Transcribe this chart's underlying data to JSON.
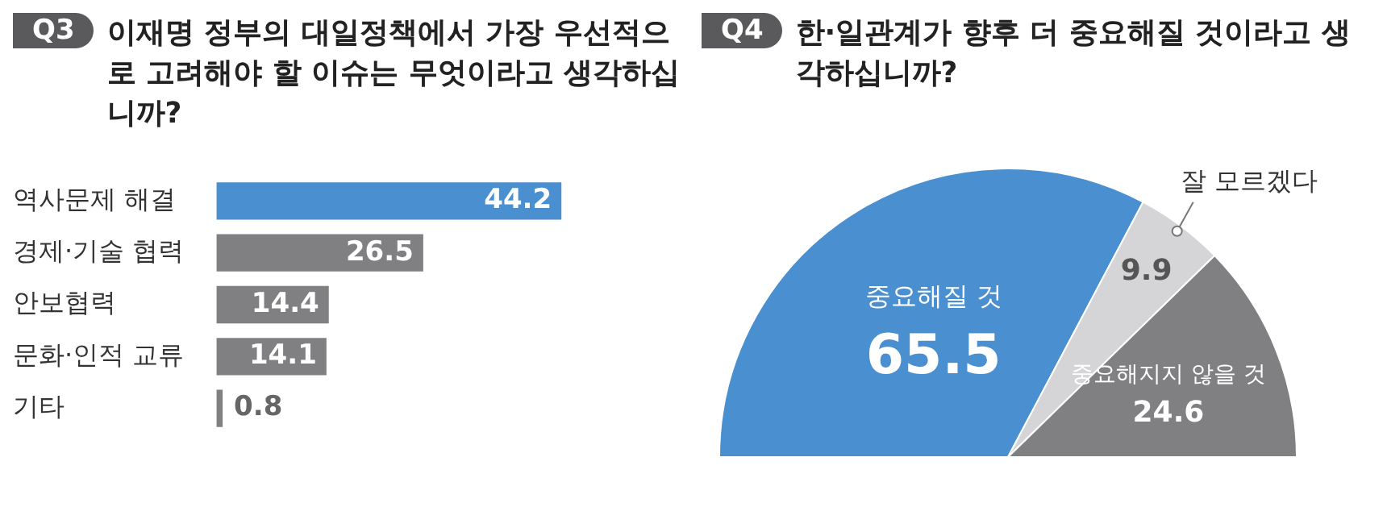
{
  "chart_data": [
    {
      "type": "bar",
      "orientation": "horizontal",
      "title": "이재명 정부의 대일정책에서 가장 우선적으로 고려해야 할 이슈는 무엇이라고 생각하십니까?",
      "annotations": [
        "Q3"
      ],
      "categories": [
        "역사문제 해결",
        "경제·기술 협력",
        "안보협력",
        "문화·인적 교류",
        "기타"
      ],
      "values": [
        44.2,
        26.5,
        14.4,
        14.1,
        0.8
      ],
      "colors": [
        "#4a8fd0",
        "#808083",
        "#808083",
        "#808083",
        "#808083"
      ],
      "data_labels": true,
      "tick_labels": "y",
      "grid": false,
      "legend": false
    },
    {
      "type": "pie",
      "title": "한·일관계가 향후 더 중요해질 것이라고 생각하십니까?",
      "annotations": [
        "Q4"
      ],
      "categories": [
        "중요해질 것",
        "잘 모르겠다",
        "중요해지지 않을 것"
      ],
      "values": [
        65.5,
        9.9,
        24.6
      ],
      "colors": [
        "#4a8fd0",
        "#d5d5d7",
        "#808083"
      ],
      "data_labels": true,
      "legend": false
    }
  ]
}
